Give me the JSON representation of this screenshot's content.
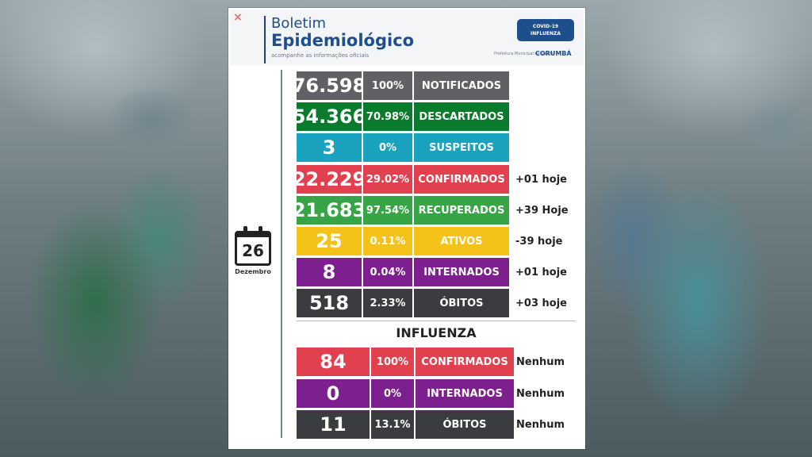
{
  "header": {
    "close_glyph": "×",
    "title_line1": "Boletim",
    "title_line2": "Epidemiológico",
    "tagline": "acompanhe as informações oficiais",
    "badge_line1": "COVID-19",
    "badge_line2": "INFLUENZA",
    "logo_text": "CORUMBÁ",
    "logo_small": "Prefeitura Municipal de Saúde"
  },
  "date": {
    "icon": "calendar-icon",
    "day": "26",
    "month": "Dezembro"
  },
  "covid_rows": [
    {
      "value": "76.598",
      "percent": "100%",
      "label": "NOTIFICADOS",
      "extra": "",
      "color": "#5f6164"
    },
    {
      "value": "54.366",
      "percent": "70.98%",
      "label": "DESCARTADOS",
      "extra": "",
      "color": "#0a7a2c"
    },
    {
      "value": "3",
      "percent": "0%",
      "label": "SUSPEITOS",
      "extra": "",
      "color": "#1aa3bf"
    },
    {
      "value": "22.229",
      "percent": "29.02%",
      "label": "CONFIRMADOS",
      "extra": "+01 hoje",
      "color": "#e1414e"
    },
    {
      "value": "21.683",
      "percent": "97.54%",
      "label": "RECUPERADOS",
      "extra": "+39 Hoje",
      "color": "#35a545"
    },
    {
      "value": "25",
      "percent": "0.11%",
      "label": "ATIVOS",
      "extra": "-39 hoje",
      "color": "#f5c21a"
    },
    {
      "value": "8",
      "percent": "0.04%",
      "label": "INTERNADOS",
      "extra": "+01 hoje",
      "color": "#7d1f8e"
    },
    {
      "value": "518",
      "percent": "2.33%",
      "label": "ÓBITOS",
      "extra": "+03 hoje",
      "color": "#3a3c3f"
    }
  ],
  "influenza": {
    "title": "INFLUENZA",
    "rows": [
      {
        "value": "84",
        "percent": "100%",
        "label": "CONFIRMADOS",
        "extra": "Nenhum",
        "color": "#e1414e"
      },
      {
        "value": "0",
        "percent": "0%",
        "label": "INTERNADOS",
        "extra": "Nenhum",
        "color": "#7d1f8e"
      },
      {
        "value": "11",
        "percent": "13.1%",
        "label": "ÓBITOS",
        "extra": "Nenhum",
        "color": "#3a3c3f"
      }
    ]
  }
}
